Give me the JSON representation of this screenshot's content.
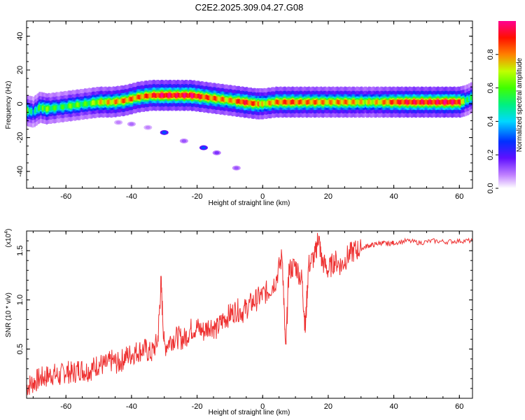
{
  "title": "C2E2.2025.309.04.27.G08",
  "chart_data": [
    {
      "type": "heatmap",
      "xlabel": "Height of straight line (km)",
      "ylabel": "Frequency (Hz)",
      "xlim": [
        -72,
        64
      ],
      "ylim": [
        -50,
        49
      ],
      "x_ticks": [
        -60,
        -40,
        -20,
        0,
        20,
        40,
        60
      ],
      "y_ticks": [
        -40,
        -20,
        0,
        20,
        40
      ],
      "ridge": {
        "x": [
          -72,
          -70,
          -68,
          -66,
          -62,
          -58,
          -54,
          -50,
          -46,
          -42,
          -38,
          -34,
          -30,
          -26,
          -22,
          -18,
          -14,
          -10,
          -6,
          -2,
          0,
          4,
          8,
          12,
          16,
          20,
          24,
          28,
          32,
          36,
          40,
          44,
          48,
          52,
          56,
          60,
          62,
          64
        ],
        "y": [
          -4,
          -5,
          -2,
          -3,
          -2,
          -1,
          0,
          1,
          1,
          2,
          4,
          5,
          5,
          5,
          5,
          4,
          3,
          2,
          1,
          0,
          0,
          1,
          1,
          1,
          1,
          1,
          1,
          1,
          1,
          1,
          1,
          1,
          1,
          1,
          1,
          1,
          2,
          4
        ]
      },
      "ridge_amplitude": [
        0.6,
        0.4,
        0.55,
        0.6,
        0.5,
        0.6,
        0.55,
        0.7,
        0.75,
        0.8,
        0.8,
        0.85,
        0.95,
        0.9,
        0.95,
        0.85,
        0.8,
        0.75,
        0.9,
        0.8,
        0.7,
        0.8,
        0.85,
        0.8,
        0.8,
        0.75,
        0.8,
        0.75,
        0.7,
        0.75,
        0.85,
        0.9,
        0.9,
        0.9,
        0.95,
        0.9,
        0.5,
        0.5
      ],
      "faint_trail": {
        "x": [
          -44,
          -40,
          -35,
          -30,
          -24,
          -18,
          -14,
          -8
        ],
        "y": [
          -11,
          -12,
          -14,
          -17,
          -22,
          -26,
          -29,
          -38
        ],
        "amplitude": [
          0.08,
          0.1,
          0.08,
          0.3,
          0.12,
          0.3,
          0.15,
          0.12
        ]
      },
      "colorbar": {
        "label": "Normalized spectral amplitude",
        "range": [
          0,
          1
        ],
        "ticks": [
          0.0,
          0.2,
          0.4,
          0.6,
          0.8
        ],
        "tick_labels": [
          "0.0",
          "0.2",
          "0.4",
          "0.6",
          "0.8"
        ]
      }
    },
    {
      "type": "line",
      "xlabel": "Height of straight line (km)",
      "ylabel": "SNR (10 * v/v)",
      "multiplier_label": "(x10",
      "multiplier_exponent": "4",
      "xlim": [
        -72,
        64
      ],
      "ylim": [
        0,
        1.7
      ],
      "x_ticks": [
        -60,
        -40,
        -20,
        0,
        20,
        40,
        60
      ],
      "y_ticks": [
        0.5,
        1.0,
        1.5
      ],
      "y_tick_labels": [
        "0.5",
        "1.0",
        "1.5"
      ],
      "series": [
        {
          "color": "#ee3030",
          "x": [
            -72,
            -70,
            -68,
            -66,
            -64,
            -62,
            -60,
            -58,
            -56,
            -54,
            -52,
            -50,
            -48,
            -46,
            -44,
            -42,
            -40,
            -38,
            -36,
            -34,
            -32,
            -31,
            -30,
            -28,
            -26,
            -24,
            -22,
            -20,
            -18,
            -16,
            -14,
            -12,
            -10,
            -8,
            -6,
            -4,
            -2,
            0,
            2,
            4,
            6,
            7,
            8,
            10,
            12,
            13,
            14,
            16,
            17,
            18,
            20,
            22,
            24,
            26,
            28,
            30,
            32,
            34,
            36,
            38,
            40,
            44,
            48,
            52,
            56,
            60,
            64
          ],
          "y": [
            0.12,
            0.16,
            0.2,
            0.22,
            0.25,
            0.22,
            0.28,
            0.25,
            0.3,
            0.28,
            0.3,
            0.35,
            0.33,
            0.38,
            0.35,
            0.42,
            0.45,
            0.48,
            0.5,
            0.45,
            0.58,
            1.18,
            0.52,
            0.6,
            0.62,
            0.6,
            0.7,
            0.72,
            0.68,
            0.75,
            0.7,
            0.8,
            0.85,
            0.9,
            0.88,
            0.95,
            1.0,
            1.05,
            1.1,
            1.2,
            1.45,
            0.45,
            1.3,
            1.35,
            1.2,
            0.7,
            1.35,
            1.45,
            1.65,
            1.4,
            1.3,
            1.4,
            1.35,
            1.45,
            1.5,
            1.52,
            1.55,
            1.56,
            1.58,
            1.57,
            1.58,
            1.6,
            1.58,
            1.6,
            1.59,
            1.6,
            1.6
          ]
        }
      ]
    }
  ]
}
